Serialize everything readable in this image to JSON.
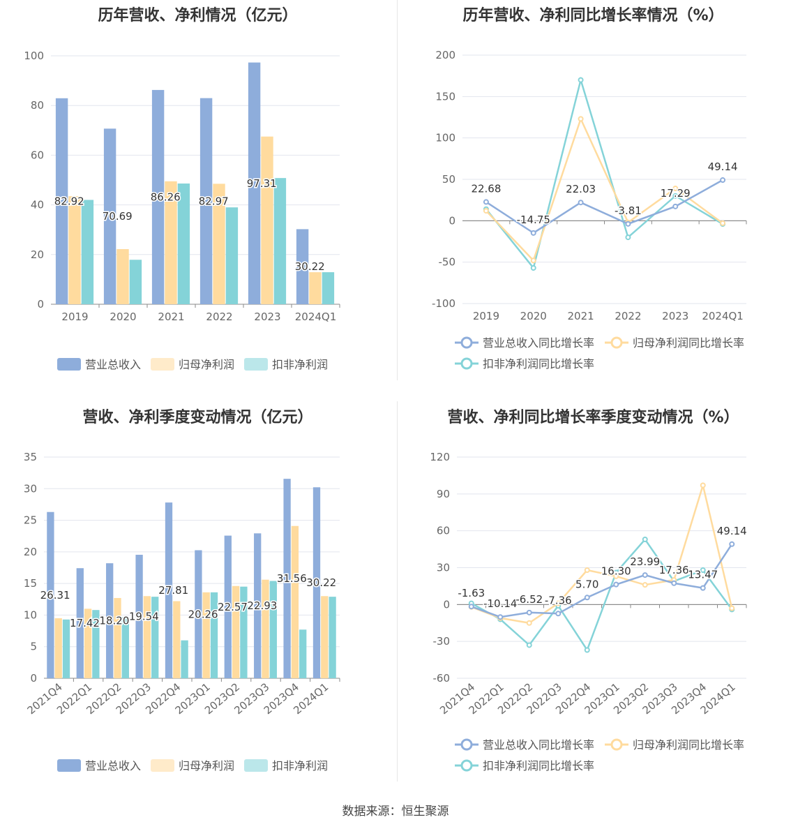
{
  "source_note": "数据来源：恒生聚源",
  "colors": {
    "revenue": "#8eaddb",
    "net_profit": "#ffdb9e",
    "deducted_profit": "#84d3d8",
    "grid": "#e2e5ee",
    "axis_text": "#666666",
    "title": "#333333"
  },
  "charts": {
    "annual_amounts": {
      "title": "历年营收、净利情况（亿元）",
      "chart_data": {
        "type": "bar",
        "categories": [
          "2019",
          "2020",
          "2021",
          "2022",
          "2023",
          "2024Q1"
        ],
        "ylim": [
          0,
          100
        ],
        "yticks": [
          0,
          20,
          40,
          60,
          80,
          100
        ],
        "grid": true,
        "legend_position": "bottom",
        "series": [
          {
            "name": "营业总收入",
            "values": [
              82.92,
              70.69,
              86.26,
              82.97,
              97.31,
              30.22
            ],
            "show_labels": true
          },
          {
            "name": "归母净利润",
            "values": [
              43.5,
              22.2,
              49.5,
              48.5,
              67.5,
              12.9
            ],
            "show_labels": false
          },
          {
            "name": "扣非净利润",
            "values": [
              42.0,
              17.9,
              48.6,
              39.0,
              50.8,
              12.9
            ],
            "show_labels": false
          }
        ]
      }
    },
    "annual_growth": {
      "title": "历年营收、净利同比增长率情况（%）",
      "chart_data": {
        "type": "line",
        "categories": [
          "2019",
          "2020",
          "2021",
          "2022",
          "2023",
          "2024Q1"
        ],
        "ylim": [
          -100,
          200
        ],
        "yticks": [
          -100,
          -50,
          0,
          50,
          100,
          150,
          200
        ],
        "grid": true,
        "legend_position": "bottom",
        "series": [
          {
            "name": "营业总收入同比增长率",
            "values": [
              22.68,
              -14.75,
              22.03,
              -3.81,
              17.29,
              49.14
            ],
            "show_labels": true
          },
          {
            "name": "归母净利润同比增长率",
            "values": [
              12.0,
              -48.0,
              123.0,
              -2.0,
              39.0,
              -3.0
            ],
            "show_labels": false
          },
          {
            "name": "扣非净利润同比增长率",
            "values": [
              14.0,
              -57.0,
              170.0,
              -20.0,
              30.0,
              -4.0
            ],
            "show_labels": false
          }
        ]
      }
    },
    "quarterly_amounts": {
      "title": "营收、净利季度变动情况（亿元）",
      "chart_data": {
        "type": "bar",
        "categories": [
          "2021Q4",
          "2022Q1",
          "2022Q2",
          "2022Q3",
          "2022Q4",
          "2023Q1",
          "2023Q2",
          "2023Q3",
          "2023Q4",
          "2024Q1"
        ],
        "ylim": [
          0,
          35
        ],
        "yticks": [
          0,
          5,
          10,
          15,
          20,
          25,
          30,
          35
        ],
        "grid": true,
        "legend_position": "bottom",
        "series": [
          {
            "name": "营业总收入",
            "values": [
              26.31,
              17.42,
              18.2,
              19.54,
              27.81,
              20.26,
              22.57,
              22.93,
              31.56,
              30.22
            ],
            "show_labels": true
          },
          {
            "name": "归母净利润",
            "values": [
              9.5,
              11.0,
              12.7,
              13.0,
              12.2,
              13.6,
              14.6,
              15.6,
              24.1,
              13.0
            ],
            "show_labels": false
          },
          {
            "name": "扣非净利润",
            "values": [
              9.3,
              10.8,
              9.7,
              12.9,
              6.0,
              13.6,
              14.5,
              15.4,
              7.7,
              12.9
            ],
            "show_labels": false
          }
        ]
      }
    },
    "quarterly_growth": {
      "title": "营收、净利同比增长率季度变动情况（%）",
      "chart_data": {
        "type": "line",
        "categories": [
          "2021Q4",
          "2022Q1",
          "2022Q2",
          "2022Q3",
          "2022Q4",
          "2023Q1",
          "2023Q2",
          "2023Q3",
          "2023Q4",
          "2024Q1"
        ],
        "ylim": [
          -60,
          120
        ],
        "yticks": [
          -60,
          -30,
          0,
          30,
          60,
          90,
          120
        ],
        "grid": true,
        "legend_position": "bottom",
        "series": [
          {
            "name": "营业总收入同比增长率",
            "values": [
              -1.63,
              -10.14,
              -6.52,
              -7.36,
              5.7,
              16.3,
              23.99,
              17.36,
              13.47,
              49.14
            ],
            "show_labels": true
          },
          {
            "name": "归母净利润同比增长率",
            "values": [
              -2.0,
              -11.0,
              -15.0,
              1.0,
              28.0,
              23.0,
              16.0,
              20.0,
              97.0,
              -3.0
            ],
            "show_labels": false
          },
          {
            "name": "扣非净利润同比增长率",
            "values": [
              1.0,
              -12.0,
              -33.0,
              -1.0,
              -37.0,
              26.0,
              53.0,
              19.0,
              28.0,
              -4.0
            ],
            "show_labels": false
          }
        ]
      }
    }
  }
}
